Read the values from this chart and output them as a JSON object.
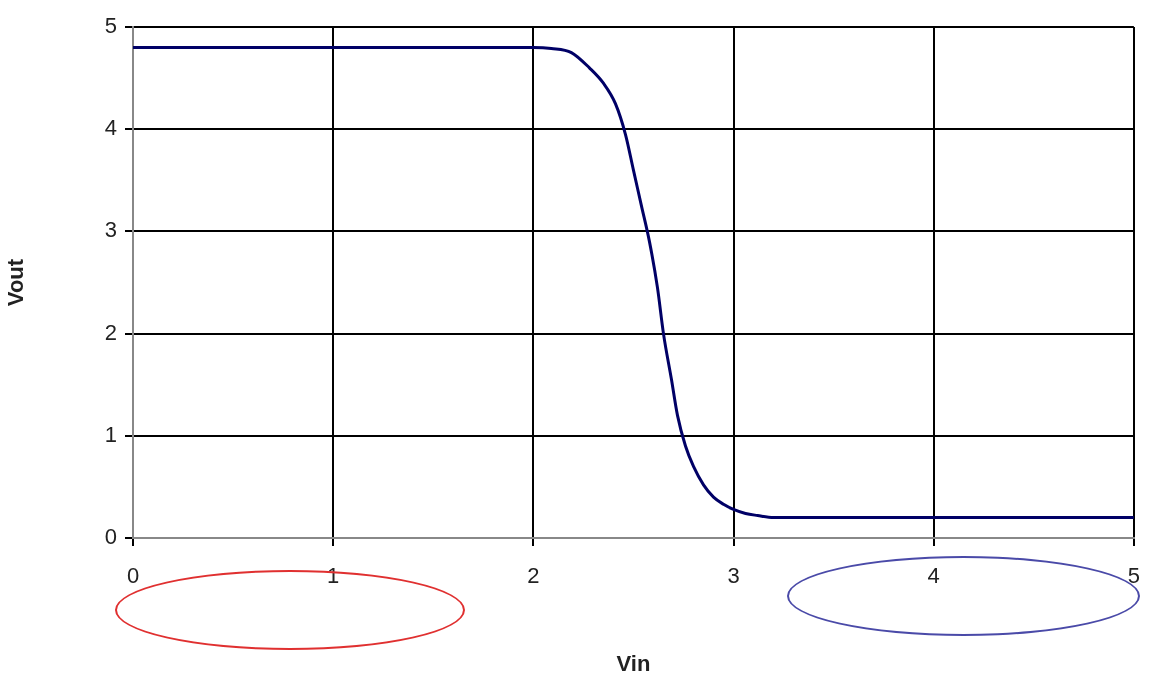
{
  "chart_data": {
    "type": "line",
    "xlabel": "Vin",
    "ylabel": "Vout",
    "xlim": [
      0,
      5
    ],
    "xticks": [
      0,
      1,
      2,
      3,
      4,
      5
    ],
    "ylim": [
      0,
      5
    ],
    "yticks": [
      0,
      1,
      2,
      3,
      4,
      5
    ],
    "grid": true,
    "marker": "none",
    "line_style": "solid",
    "series": [
      {
        "color": "#000066",
        "x": [
          0,
          0.5,
          1,
          1.5,
          2,
          2.09,
          2.19,
          2.28,
          2.35,
          2.41,
          2.46,
          2.5,
          2.54,
          2.58,
          2.62,
          2.65,
          2.69,
          2.72,
          2.76,
          2.8,
          2.85,
          2.9,
          2.95,
          3,
          3.06,
          3.12,
          3.2,
          3.5,
          4,
          4.5,
          5
        ],
        "values": [
          4.8,
          4.8,
          4.8,
          4.8,
          4.8,
          4.79,
          4.75,
          4.6,
          4.45,
          4.25,
          3.95,
          3.6,
          3.25,
          2.9,
          2.45,
          2.0,
          1.55,
          1.2,
          0.9,
          0.7,
          0.52,
          0.4,
          0.33,
          0.28,
          0.24,
          0.22,
          0.2,
          0.2,
          0.2,
          0.2,
          0.2
        ]
      }
    ]
  }
}
